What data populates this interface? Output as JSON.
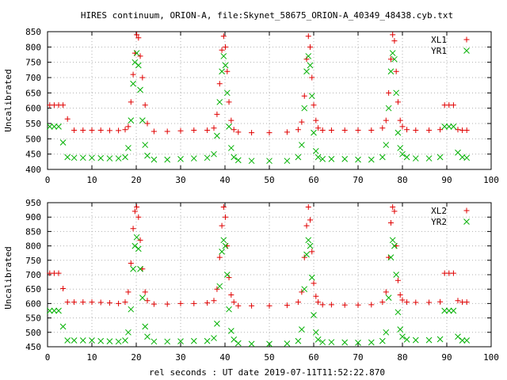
{
  "figure": {
    "title": "HIRES continuum, ORION-A, file:Skynet_58675_ORION-A_40349_48438.cyb.txt",
    "xlabel": "rel seconds : UT date 2019-07-11T11:52:22.870"
  },
  "colors": {
    "xl": "#e00000",
    "yr": "#00b000",
    "axis": "#000000",
    "grid": "#b0b0b0"
  },
  "chart_data": [
    {
      "type": "scatter",
      "ylabel": "Uncalibrated",
      "xlim": [
        0,
        100
      ],
      "ylim": [
        400,
        850
      ],
      "xticks": [
        0,
        10,
        20,
        30,
        40,
        50,
        60,
        70,
        80,
        90,
        100
      ],
      "yticks": [
        400,
        450,
        500,
        550,
        600,
        650,
        700,
        750,
        800,
        850
      ],
      "grid": true,
      "legend_position": "top-right",
      "series": [
        {
          "name": "XL1",
          "marker": "plus",
          "x": [
            0.5,
            1.5,
            2.5,
            3.5,
            4.5,
            6,
            8,
            10,
            12,
            14,
            16,
            17.5,
            18.2,
            18.8,
            19.3,
            19.7,
            20.1,
            20.5,
            20.9,
            21.4,
            22,
            22.5,
            24,
            27,
            30,
            33,
            36,
            37.5,
            38.2,
            38.8,
            39.3,
            39.7,
            40.1,
            40.5,
            40.9,
            41.4,
            42,
            43,
            46,
            50,
            54,
            56.5,
            57.3,
            57.9,
            58.4,
            58.8,
            59.2,
            59.6,
            60,
            60.5,
            61,
            62,
            64,
            67,
            70,
            73,
            75.5,
            76.3,
            76.9,
            77.4,
            77.8,
            78.2,
            78.6,
            79,
            79.5,
            80,
            81,
            83,
            86,
            88.5,
            89.5,
            90.5,
            91.5,
            92.5,
            93.5,
            94.5
          ],
          "y": [
            610,
            610,
            610,
            610,
            565,
            528,
            528,
            528,
            528,
            527,
            527,
            530,
            540,
            620,
            710,
            780,
            840,
            830,
            770,
            700,
            610,
            550,
            524,
            524,
            526,
            528,
            528,
            535,
            580,
            680,
            790,
            835,
            800,
            720,
            620,
            560,
            530,
            522,
            520,
            520,
            522,
            530,
            555,
            640,
            760,
            835,
            800,
            700,
            610,
            560,
            535,
            528,
            528,
            528,
            528,
            528,
            535,
            560,
            650,
            760,
            840,
            820,
            720,
            620,
            560,
            540,
            530,
            528,
            528,
            530,
            610,
            610,
            610,
            530,
            528,
            528
          ]
        },
        {
          "name": "YR1",
          "marker": "cross",
          "x": [
            0.5,
            1.5,
            2.5,
            3.5,
            4.5,
            6,
            8,
            10,
            12,
            14,
            16,
            17.5,
            18.2,
            18.8,
            19.3,
            19.7,
            20.1,
            20.5,
            20.9,
            21.4,
            22,
            22.5,
            24,
            27,
            30,
            33,
            36,
            37.5,
            38.2,
            38.8,
            39.3,
            39.7,
            40.1,
            40.5,
            40.9,
            41.4,
            42,
            43,
            46,
            50,
            54,
            56.5,
            57.3,
            57.9,
            58.4,
            58.8,
            59.2,
            59.6,
            60,
            60.5,
            61,
            62,
            64,
            67,
            70,
            73,
            75.5,
            76.3,
            76.9,
            77.4,
            77.8,
            78.2,
            78.6,
            79,
            79.5,
            80,
            81,
            83,
            86,
            88.5,
            89.5,
            90.5,
            91.5,
            92.5,
            93.5,
            94.5
          ],
          "y": [
            540,
            540,
            540,
            488,
            440,
            438,
            438,
            438,
            437,
            436,
            436,
            440,
            470,
            560,
            680,
            750,
            780,
            740,
            660,
            560,
            480,
            445,
            432,
            432,
            434,
            436,
            438,
            450,
            510,
            620,
            720,
            770,
            740,
            650,
            540,
            470,
            440,
            430,
            428,
            428,
            428,
            440,
            480,
            600,
            720,
            770,
            740,
            640,
            520,
            460,
            440,
            434,
            434,
            434,
            432,
            432,
            440,
            480,
            600,
            720,
            780,
            760,
            650,
            520,
            470,
            450,
            440,
            436,
            436,
            440,
            540,
            540,
            540,
            455,
            440,
            438
          ]
        }
      ]
    },
    {
      "type": "scatter",
      "ylabel": "Uncalibrated",
      "xlim": [
        0,
        100
      ],
      "ylim": [
        450,
        950
      ],
      "xticks": [
        0,
        10,
        20,
        30,
        40,
        50,
        60,
        70,
        80,
        90,
        100
      ],
      "yticks": [
        450,
        500,
        550,
        600,
        650,
        700,
        750,
        800,
        850,
        900,
        950
      ],
      "grid": true,
      "legend_position": "top-right",
      "series": [
        {
          "name": "XL2",
          "marker": "plus",
          "x": [
            0.5,
            1.5,
            2.5,
            3.5,
            4.5,
            6,
            8,
            10,
            12,
            14,
            16,
            17.5,
            18.2,
            18.8,
            19.3,
            19.7,
            20.1,
            20.5,
            20.9,
            21.4,
            22,
            22.5,
            24,
            27,
            30,
            33,
            36,
            37.5,
            38.2,
            38.8,
            39.3,
            39.7,
            40.1,
            40.5,
            40.9,
            41.4,
            42,
            43,
            46,
            50,
            54,
            56.5,
            57.3,
            57.9,
            58.4,
            58.8,
            59.2,
            59.6,
            60,
            60.5,
            61,
            62,
            64,
            67,
            70,
            73,
            75.5,
            76.3,
            76.9,
            77.4,
            77.8,
            78.2,
            78.6,
            79,
            79.5,
            80,
            81,
            83,
            86,
            88.5,
            89.5,
            90.5,
            91.5,
            92.5,
            93.5,
            94.5
          ],
          "y": [
            705,
            705,
            705,
            652,
            605,
            605,
            605,
            605,
            604,
            602,
            600,
            605,
            640,
            740,
            860,
            920,
            935,
            900,
            820,
            720,
            640,
            610,
            598,
            598,
            600,
            600,
            602,
            610,
            650,
            760,
            870,
            935,
            900,
            800,
            690,
            630,
            605,
            592,
            592,
            592,
            594,
            605,
            640,
            760,
            870,
            935,
            890,
            780,
            670,
            625,
            605,
            596,
            596,
            595,
            595,
            596,
            605,
            640,
            760,
            880,
            935,
            920,
            800,
            680,
            630,
            612,
            605,
            604,
            604,
            606,
            705,
            705,
            705,
            610,
            605,
            605
          ]
        },
        {
          "name": "YR2",
          "marker": "cross",
          "x": [
            0.5,
            1.5,
            2.5,
            3.5,
            4.5,
            6,
            8,
            10,
            12,
            14,
            16,
            17.5,
            18.2,
            18.8,
            19.3,
            19.7,
            20.1,
            20.5,
            20.9,
            21.4,
            22,
            22.5,
            24,
            27,
            30,
            33,
            36,
            37.5,
            38.2,
            38.8,
            39.3,
            39.7,
            40.1,
            40.5,
            40.9,
            41.4,
            42,
            43,
            46,
            50,
            54,
            56.5,
            57.3,
            57.9,
            58.4,
            58.8,
            59.2,
            59.6,
            60,
            60.5,
            61,
            62,
            64,
            67,
            70,
            73,
            75.5,
            76.3,
            76.9,
            77.4,
            77.8,
            78.2,
            78.6,
            79,
            79.5,
            80,
            81,
            83,
            86,
            88.5,
            89.5,
            90.5,
            91.5,
            92.5,
            93.5,
            94.5
          ],
          "y": [
            575,
            575,
            575,
            520,
            472,
            472,
            472,
            472,
            470,
            469,
            468,
            472,
            500,
            580,
            720,
            800,
            830,
            790,
            720,
            620,
            520,
            485,
            468,
            468,
            469,
            470,
            470,
            480,
            530,
            660,
            780,
            820,
            800,
            700,
            580,
            505,
            475,
            462,
            460,
            460,
            461,
            470,
            510,
            650,
            770,
            820,
            800,
            690,
            560,
            500,
            475,
            466,
            466,
            465,
            464,
            465,
            470,
            500,
            620,
            760,
            820,
            800,
            700,
            570,
            510,
            485,
            475,
            473,
            473,
            476,
            575,
            575,
            575,
            485,
            472,
            472
          ]
        }
      ]
    }
  ]
}
